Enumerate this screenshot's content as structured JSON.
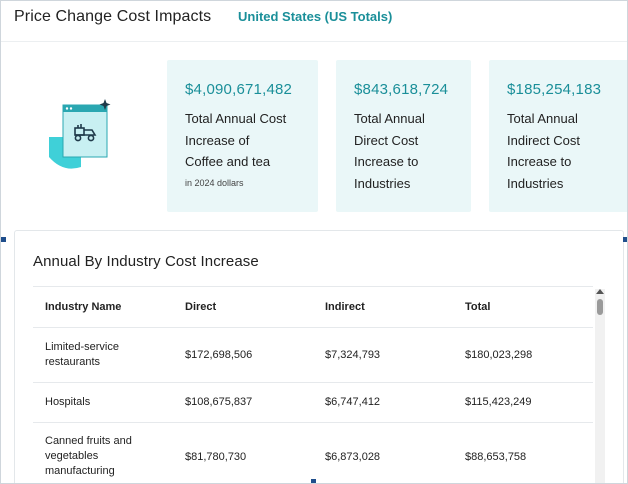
{
  "header": {
    "title": "Price Change Cost Impacts",
    "region": "United States (US Totals)"
  },
  "illustration": {
    "icon": "coffee-truck-illustration-icon"
  },
  "cards": [
    {
      "amount": "$4,090,671,482",
      "lines": [
        "Total Annual Cost",
        "Increase of",
        "Coffee and tea"
      ],
      "note": "in 2024 dollars"
    },
    {
      "amount": "$843,618,724",
      "lines": [
        "Total Annual",
        "Direct Cost",
        "Increase to",
        "Industries"
      ]
    },
    {
      "amount": "$185,254,183",
      "lines": [
        "Total Annual",
        "Indirect Cost",
        "Increase to",
        "Industries"
      ]
    }
  ],
  "panel": {
    "title": "Annual By Industry Cost Increase",
    "columns": [
      "Industry Name",
      "Direct",
      "Indirect",
      "Total"
    ],
    "rows": [
      {
        "name_lines": [
          "Limited-service",
          "restaurants"
        ],
        "direct": "$172,698,506",
        "indirect": "$7,324,793",
        "total": "$180,023,298"
      },
      {
        "name_lines": [
          "Hospitals"
        ],
        "direct": "$108,675,837",
        "indirect": "$6,747,412",
        "total": "$115,423,249"
      },
      {
        "name_lines": [
          "Canned fruits and",
          "vegetables",
          "manufacturing"
        ],
        "direct": "$81,780,730",
        "indirect": "$6,873,028",
        "total": "$88,653,758"
      }
    ]
  },
  "colors": {
    "accent": "#1a8f99",
    "card_bg": "#eaf7f8",
    "handle": "#1f4e8c"
  }
}
